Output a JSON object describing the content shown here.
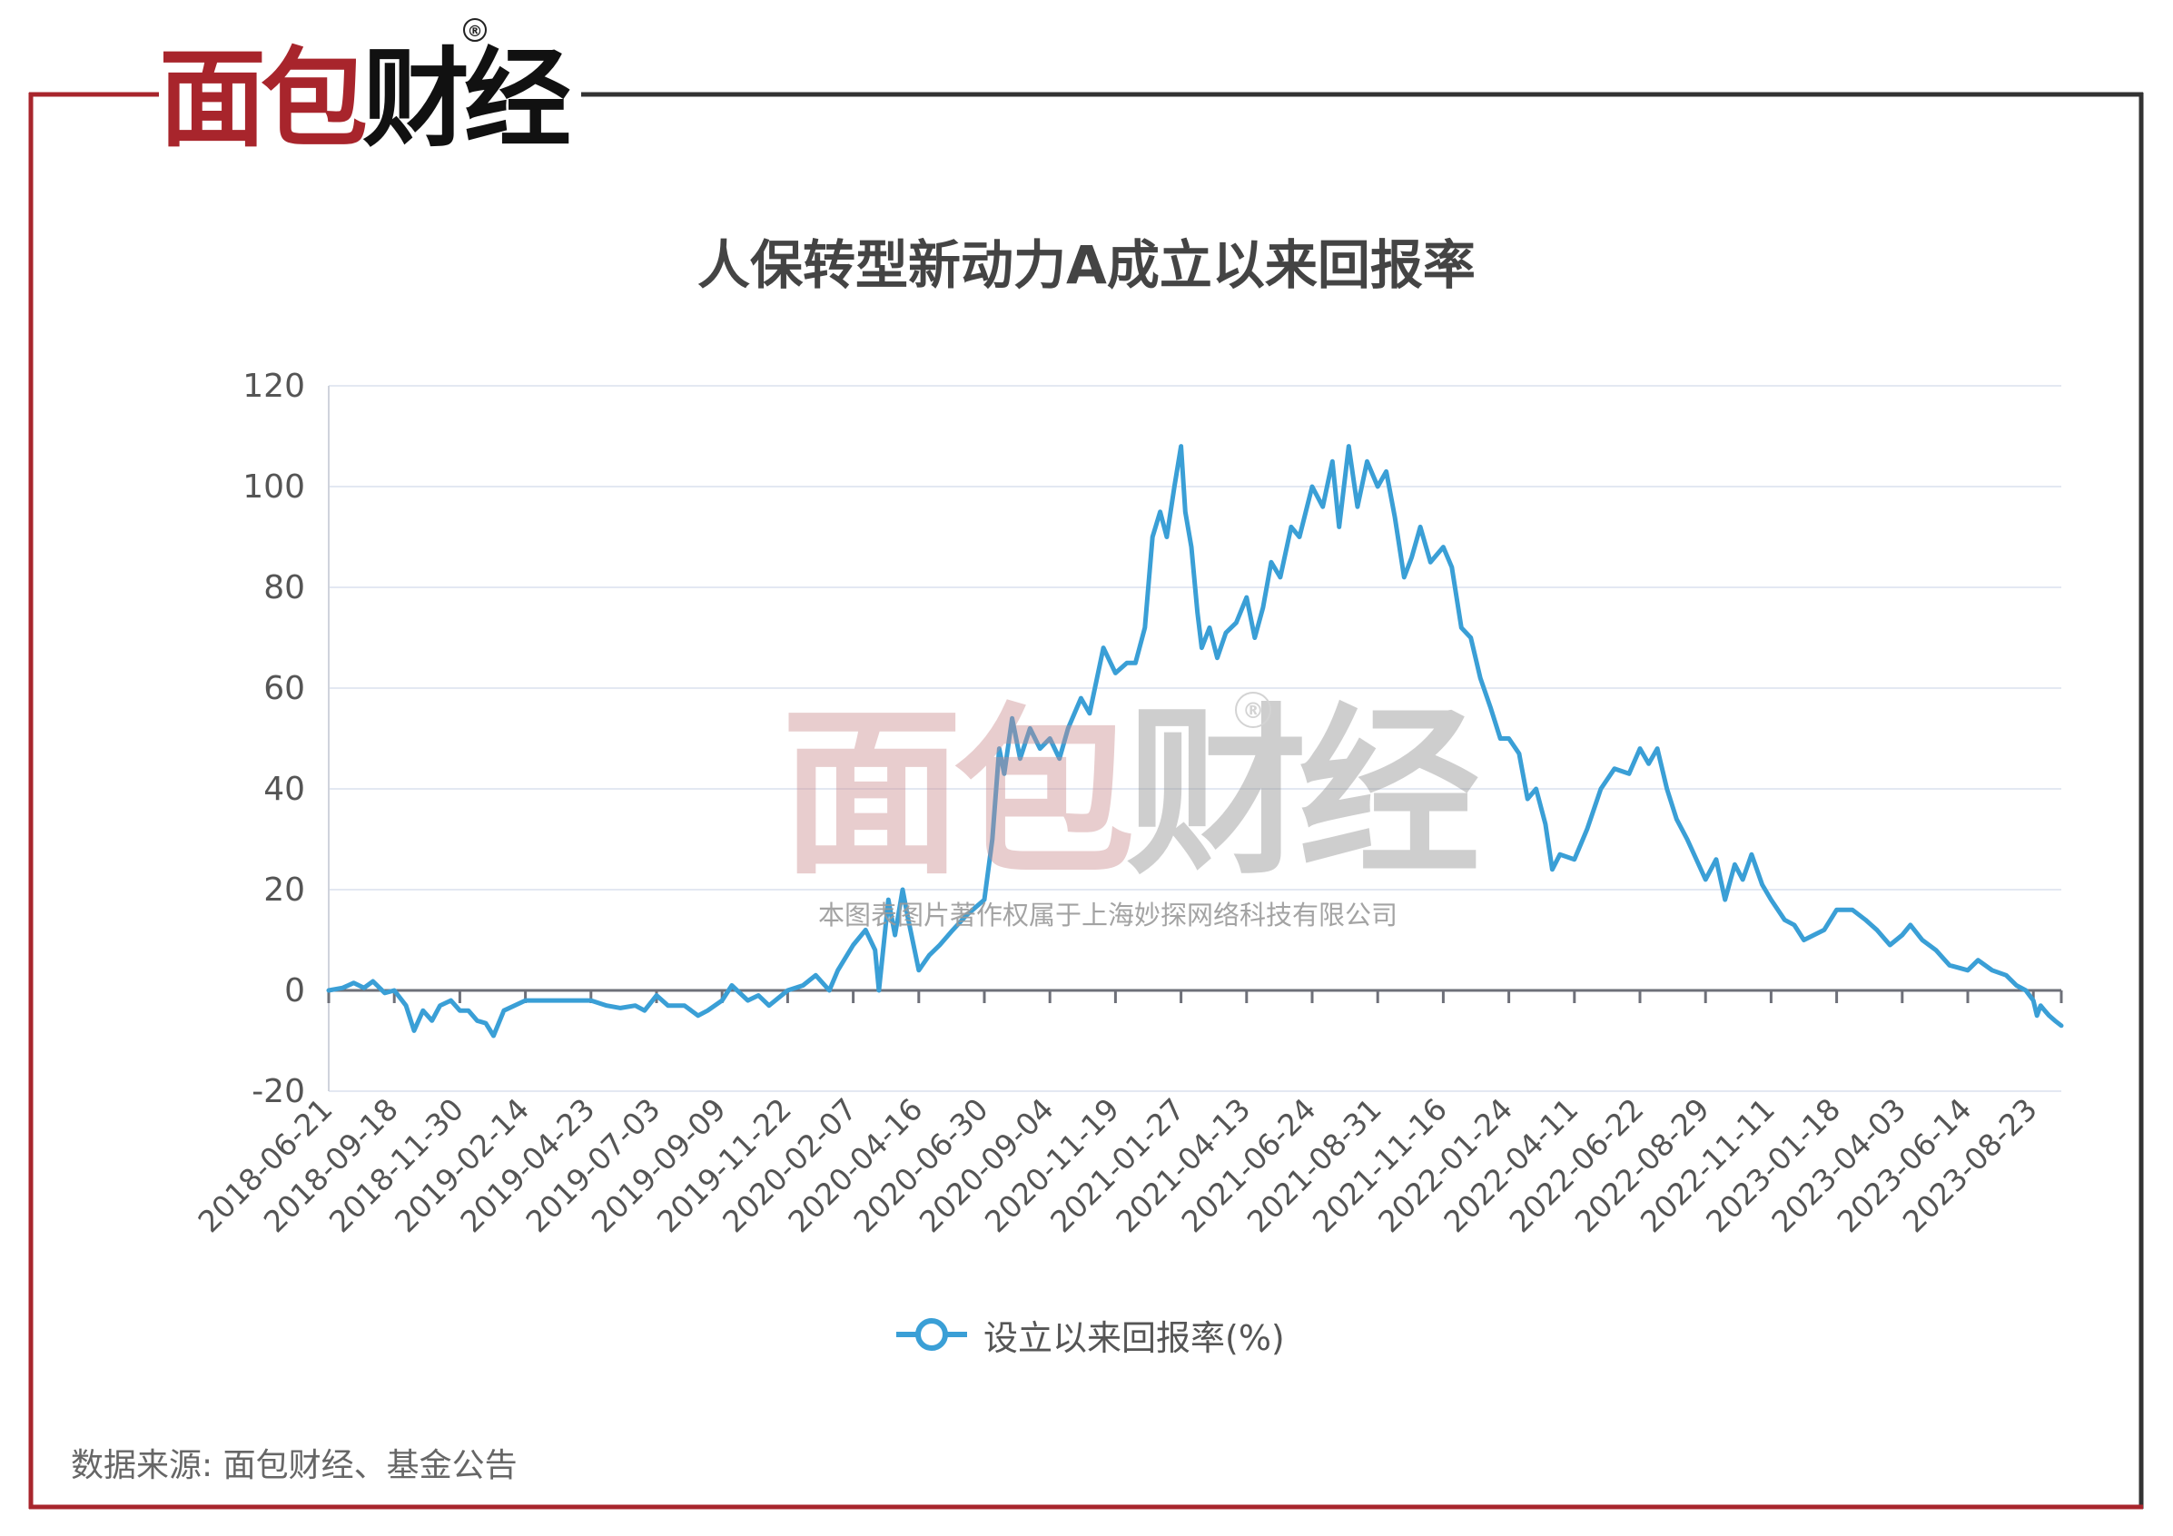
{
  "brand": {
    "logo_red": "面包",
    "logo_black": "财经",
    "registered": "®",
    "watermark_caption": "本图表图片著作权属于上海妙探网络科技有限公司"
  },
  "colors": {
    "frame_red": "#a8252c",
    "frame_dark": "#333333",
    "series": "#3a9fd6",
    "grid": "#e3e8f2",
    "axis": "#6e7079"
  },
  "source_text": "数据来源: 面包财经、基金公告",
  "chart_data": {
    "type": "line",
    "title": "人保转型新动力A成立以来回报率",
    "xlabel": "",
    "ylabel": "",
    "ylim": [
      -20,
      120
    ],
    "yticks": [
      -20,
      0,
      20,
      40,
      60,
      80,
      100,
      120
    ],
    "grid": true,
    "legend_position": "bottom-center",
    "x_range": [
      "2018-06-21",
      "2023-10-31"
    ],
    "x_tick_labels": [
      "2018-06-21",
      "2018-09-18",
      "2018-11-30",
      "2019-02-14",
      "2019-04-23",
      "2019-07-03",
      "2019-09-09",
      "2019-11-22",
      "2020-02-07",
      "2020-04-16",
      "2020-06-30",
      "2020-09-04",
      "2020-11-19",
      "2021-01-27",
      "2021-04-13",
      "2021-06-24",
      "2021-08-31",
      "2021-11-16",
      "2022-01-24",
      "2022-04-11",
      "2022-06-22",
      "2022-08-29",
      "2022-11-11",
      "2023-01-18",
      "2023-04-03",
      "2023-06-14",
      "2023-08-23"
    ],
    "series": [
      {
        "name": "设立以来回报率(%)",
        "points": [
          [
            "2018-06-21",
            0
          ],
          [
            "2018-07-10",
            0.5
          ],
          [
            "2018-07-25",
            1.5
          ],
          [
            "2018-08-08",
            0.5
          ],
          [
            "2018-08-20",
            1.8
          ],
          [
            "2018-09-05",
            -0.5
          ],
          [
            "2018-09-18",
            0
          ],
          [
            "2018-10-01",
            -3
          ],
          [
            "2018-10-10",
            -8
          ],
          [
            "2018-10-20",
            -4
          ],
          [
            "2018-10-30",
            -6
          ],
          [
            "2018-11-08",
            -3
          ],
          [
            "2018-11-20",
            -2
          ],
          [
            "2018-11-30",
            -4
          ],
          [
            "2018-12-10",
            -4
          ],
          [
            "2018-12-20",
            -6
          ],
          [
            "2018-12-30",
            -6.5
          ],
          [
            "2019-01-08",
            -9
          ],
          [
            "2019-01-20",
            -4
          ],
          [
            "2019-02-14",
            -2
          ],
          [
            "2019-03-10",
            -2
          ],
          [
            "2019-04-05",
            -2
          ],
          [
            "2019-04-23",
            -2
          ],
          [
            "2019-05-10",
            -3
          ],
          [
            "2019-05-25",
            -3.5
          ],
          [
            "2019-06-10",
            -3
          ],
          [
            "2019-06-20",
            -4
          ],
          [
            "2019-07-03",
            -1
          ],
          [
            "2019-07-15",
            -3
          ],
          [
            "2019-08-01",
            -3
          ],
          [
            "2019-08-15",
            -5
          ],
          [
            "2019-08-25",
            -4
          ],
          [
            "2019-09-09",
            -2
          ],
          [
            "2019-09-20",
            1
          ],
          [
            "2019-10-08",
            -2
          ],
          [
            "2019-10-20",
            -1
          ],
          [
            "2019-11-01",
            -3
          ],
          [
            "2019-11-22",
            0
          ],
          [
            "2019-12-10",
            1
          ],
          [
            "2019-12-25",
            3
          ],
          [
            "2020-01-10",
            0
          ],
          [
            "2020-01-20",
            4
          ],
          [
            "2020-02-07",
            9
          ],
          [
            "2020-02-20",
            12
          ],
          [
            "2020-03-01",
            8
          ],
          [
            "2020-03-05",
            0
          ],
          [
            "2020-03-15",
            18
          ],
          [
            "2020-03-22",
            11
          ],
          [
            "2020-03-30",
            20
          ],
          [
            "2020-04-05",
            14
          ],
          [
            "2020-04-16",
            4
          ],
          [
            "2020-04-28",
            7
          ],
          [
            "2020-05-10",
            9
          ],
          [
            "2020-05-25",
            12
          ],
          [
            "2020-06-10",
            15
          ],
          [
            "2020-06-30",
            18
          ],
          [
            "2020-07-08",
            30
          ],
          [
            "2020-07-15",
            48
          ],
          [
            "2020-07-20",
            43
          ],
          [
            "2020-07-28",
            54
          ],
          [
            "2020-08-05",
            46
          ],
          [
            "2020-08-15",
            52
          ],
          [
            "2020-08-25",
            48
          ],
          [
            "2020-09-04",
            50
          ],
          [
            "2020-09-15",
            46
          ],
          [
            "2020-09-25",
            52
          ],
          [
            "2020-10-10",
            58
          ],
          [
            "2020-10-20",
            55
          ],
          [
            "2020-11-05",
            68
          ],
          [
            "2020-11-19",
            63
          ],
          [
            "2020-12-01",
            65
          ],
          [
            "2020-12-10",
            65
          ],
          [
            "2020-12-20",
            72
          ],
          [
            "2020-12-28",
            90
          ],
          [
            "2021-01-05",
            95
          ],
          [
            "2021-01-12",
            90
          ],
          [
            "2021-01-20",
            100
          ],
          [
            "2021-01-27",
            108
          ],
          [
            "2021-02-01",
            95
          ],
          [
            "2021-02-08",
            88
          ],
          [
            "2021-02-15",
            75
          ],
          [
            "2021-02-20",
            68
          ],
          [
            "2021-03-01",
            72
          ],
          [
            "2021-03-10",
            66
          ],
          [
            "2021-03-20",
            71
          ],
          [
            "2021-04-01",
            73
          ],
          [
            "2021-04-13",
            78
          ],
          [
            "2021-04-22",
            70
          ],
          [
            "2021-05-01",
            76
          ],
          [
            "2021-05-10",
            85
          ],
          [
            "2021-05-20",
            82
          ],
          [
            "2021-06-01",
            92
          ],
          [
            "2021-06-10",
            90
          ],
          [
            "2021-06-24",
            100
          ],
          [
            "2021-07-05",
            96
          ],
          [
            "2021-07-15",
            105
          ],
          [
            "2021-07-22",
            92
          ],
          [
            "2021-08-01",
            108
          ],
          [
            "2021-08-10",
            96
          ],
          [
            "2021-08-20",
            105
          ],
          [
            "2021-08-31",
            100
          ],
          [
            "2021-09-10",
            103
          ],
          [
            "2021-09-20",
            94
          ],
          [
            "2021-10-01",
            82
          ],
          [
            "2021-10-10",
            86
          ],
          [
            "2021-10-20",
            92
          ],
          [
            "2021-11-01",
            85
          ],
          [
            "2021-11-16",
            88
          ],
          [
            "2021-11-25",
            84
          ],
          [
            "2021-12-05",
            72
          ],
          [
            "2021-12-15",
            70
          ],
          [
            "2021-12-25",
            62
          ],
          [
            "2022-01-05",
            56
          ],
          [
            "2022-01-15",
            50
          ],
          [
            "2022-01-24",
            50
          ],
          [
            "2022-02-05",
            47
          ],
          [
            "2022-02-15",
            38
          ],
          [
            "2022-02-25",
            40
          ],
          [
            "2022-03-08",
            33
          ],
          [
            "2022-03-16",
            24
          ],
          [
            "2022-03-25",
            27
          ],
          [
            "2022-04-11",
            26
          ],
          [
            "2022-04-25",
            32
          ],
          [
            "2022-05-10",
            40
          ],
          [
            "2022-05-25",
            44
          ],
          [
            "2022-06-10",
            43
          ],
          [
            "2022-06-22",
            48
          ],
          [
            "2022-07-01",
            45
          ],
          [
            "2022-07-10",
            48
          ],
          [
            "2022-07-20",
            40
          ],
          [
            "2022-07-30",
            34
          ],
          [
            "2022-08-10",
            30
          ],
          [
            "2022-08-29",
            22
          ],
          [
            "2022-09-10",
            26
          ],
          [
            "2022-09-20",
            18
          ],
          [
            "2022-10-01",
            25
          ],
          [
            "2022-10-10",
            22
          ],
          [
            "2022-10-20",
            27
          ],
          [
            "2022-11-01",
            21
          ],
          [
            "2022-11-11",
            18
          ],
          [
            "2022-11-25",
            14
          ],
          [
            "2022-12-05",
            13
          ],
          [
            "2022-12-15",
            10
          ],
          [
            "2023-01-05",
            12
          ],
          [
            "2023-01-18",
            16
          ],
          [
            "2023-02-05",
            16
          ],
          [
            "2023-02-20",
            14
          ],
          [
            "2023-03-05",
            12
          ],
          [
            "2023-03-20",
            9
          ],
          [
            "2023-04-03",
            11
          ],
          [
            "2023-04-12",
            13
          ],
          [
            "2023-04-25",
            10
          ],
          [
            "2023-05-10",
            8
          ],
          [
            "2023-05-25",
            5
          ],
          [
            "2023-06-14",
            4
          ],
          [
            "2023-06-25",
            6
          ],
          [
            "2023-07-10",
            4
          ],
          [
            "2023-07-25",
            3
          ],
          [
            "2023-08-05",
            1
          ],
          [
            "2023-08-15",
            0
          ],
          [
            "2023-08-23",
            -2
          ],
          [
            "2023-09-01",
            -5
          ],
          [
            "2023-09-10",
            -3
          ],
          [
            "2023-09-20",
            -4
          ],
          [
            "2023-10-01",
            -5
          ],
          [
            "2023-10-15",
            -6
          ],
          [
            "2023-10-31",
            -7
          ]
        ]
      }
    ]
  }
}
